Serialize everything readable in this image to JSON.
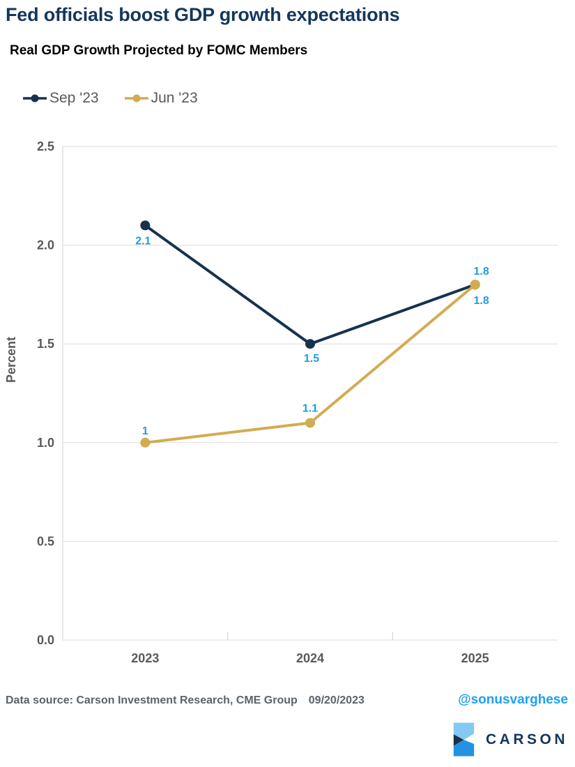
{
  "page": {
    "title": "Fed officials boost GDP growth expectations",
    "subtitle": "Real GDP Growth Projected by FOMC Members"
  },
  "chart_data": {
    "type": "line",
    "categories": [
      "2023",
      "2024",
      "2025"
    ],
    "series": [
      {
        "name": "Sep '23",
        "values": [
          2.1,
          1.5,
          1.8
        ],
        "labels": [
          "2.1",
          "1.5",
          "1.8"
        ],
        "label_offsets": [
          [
            -3,
            22
          ],
          [
            2,
            21
          ],
          [
            9,
            -19
          ]
        ],
        "color": "#16324E"
      },
      {
        "name": "Jun '23",
        "values": [
          1.0,
          1.1,
          1.8
        ],
        "labels": [
          "1",
          "1.1",
          "1.8"
        ],
        "label_offsets": [
          [
            0,
            -17
          ],
          [
            0,
            -21
          ],
          [
            9,
            23
          ]
        ],
        "color": "#D2AC51"
      }
    ],
    "title": "Real GDP Growth Projected by FOMC Members",
    "xlabel": "",
    "ylabel": "Percent",
    "ylim": [
      0,
      2.5
    ],
    "yticks": [
      "0.0",
      "0.5",
      "1.0",
      "1.5",
      "2.0",
      "2.5"
    ],
    "grid": true,
    "legend_position": "top-left",
    "data_label_color": "#1E9DE3",
    "grid_color": "#DDDDDD",
    "axis_color": "#CFCFCF",
    "tick_text_color": "#595959"
  },
  "footer": {
    "source": "Data source: Carson Investment Research, CME Group",
    "date": "09/20/2023",
    "handle": "@sonusvarghese"
  },
  "logo": {
    "text": "CARSON",
    "light_blue": "#84C9F3",
    "dark_navy": "#1D3049",
    "blue": "#2492E3"
  }
}
